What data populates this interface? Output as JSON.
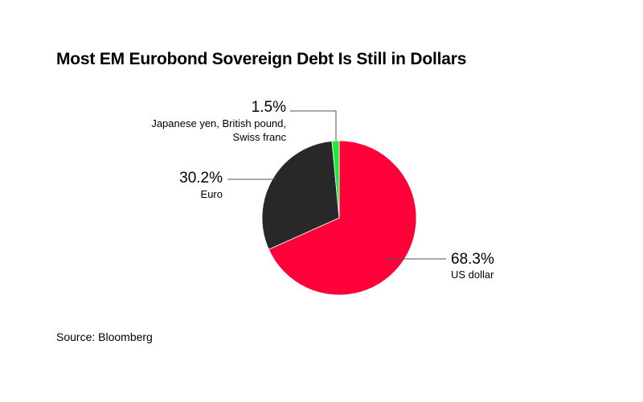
{
  "title": "Most EM Eurobond Sovereign Debt Is Still in Dollars",
  "source": "Source: Bloomberg",
  "chart_data": {
    "type": "pie",
    "title": "Most EM Eurobond Sovereign Debt Is Still in Dollars",
    "slices": [
      {
        "pct_label": "68.3%",
        "value": 68.3,
        "label_lines": [
          "US dollar"
        ],
        "color": "#ff0039"
      },
      {
        "pct_label": "30.2%",
        "value": 30.2,
        "label_lines": [
          "Euro"
        ],
        "color": "#282828"
      },
      {
        "pct_label": "1.5%",
        "value": 1.5,
        "label_lines": [
          "Japanese yen, British pound,",
          "Swiss franc"
        ],
        "color": "#1ee83a"
      }
    ]
  }
}
